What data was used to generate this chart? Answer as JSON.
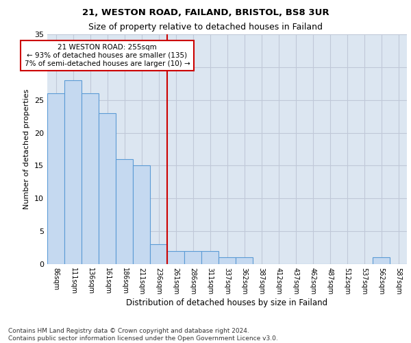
{
  "title1": "21, WESTON ROAD, FAILAND, BRISTOL, BS8 3UR",
  "title2": "Size of property relative to detached houses in Failand",
  "xlabel": "Distribution of detached houses by size in Failand",
  "ylabel": "Number of detached properties",
  "footer": "Contains HM Land Registry data © Crown copyright and database right 2024.\nContains public sector information licensed under the Open Government Licence v3.0.",
  "bin_labels": [
    "86sqm",
    "111sqm",
    "136sqm",
    "161sqm",
    "186sqm",
    "211sqm",
    "236sqm",
    "261sqm",
    "286sqm",
    "311sqm",
    "337sqm",
    "362sqm",
    "387sqm",
    "412sqm",
    "437sqm",
    "462sqm",
    "487sqm",
    "512sqm",
    "537sqm",
    "562sqm",
    "587sqm"
  ],
  "bar_values": [
    26,
    28,
    26,
    23,
    16,
    15,
    3,
    2,
    2,
    2,
    1,
    1,
    0,
    0,
    0,
    0,
    0,
    0,
    0,
    1,
    0
  ],
  "bar_color": "#c5d9f0",
  "bar_edge_color": "#5b9bd5",
  "grid_color": "#c0c8d8",
  "background_color": "#dce6f1",
  "annotation_text": "21 WESTON ROAD: 255sqm\n← 93% of detached houses are smaller (135)\n7% of semi-detached houses are larger (10) →",
  "annotation_box_color": "#ffffff",
  "annotation_border_color": "#cc0000",
  "vline_color": "#cc0000",
  "vline_x": 6.5,
  "ylim": [
    0,
    35
  ],
  "yticks": [
    0,
    5,
    10,
    15,
    20,
    25,
    30,
    35
  ]
}
